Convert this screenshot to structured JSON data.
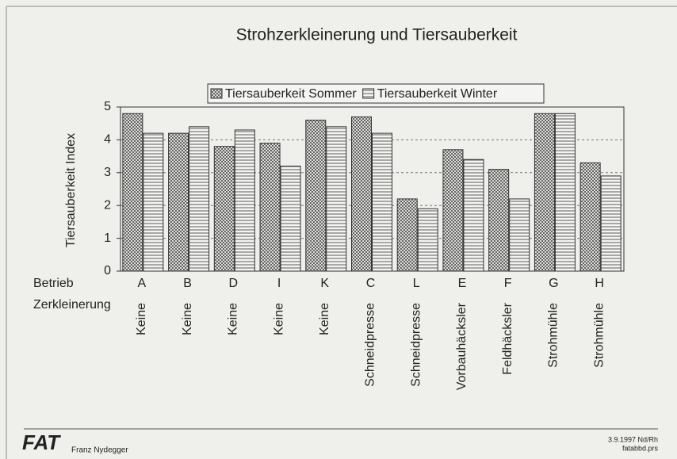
{
  "chart_data": {
    "type": "bar",
    "title": "Strohzerkleinerung und Tiersauberkeit",
    "y_label": "Tiersauberkeit Index",
    "row_labels": [
      "Betrieb",
      "Zerkleinerung"
    ],
    "categories": [
      "A",
      "B",
      "D",
      "I",
      "K",
      "C",
      "L",
      "E",
      "F",
      "G",
      "H"
    ],
    "category_details": [
      "Keine",
      "Keine",
      "Keine",
      "Keine",
      "Keine",
      "Schneidpresse",
      "Schneidpresse",
      "Vorbauhäcksler",
      "Feldhäcksler",
      "Strohmühle",
      "Strohmühle"
    ],
    "series": [
      {
        "name": "Tiersauberkeit Sommer",
        "color": "#333333",
        "hatch": "cross",
        "values": [
          4.8,
          4.2,
          3.8,
          3.9,
          4.6,
          4.7,
          2.2,
          3.7,
          3.1,
          4.8,
          3.3
        ]
      },
      {
        "name": "Tiersauberkeit Winter",
        "color": "#333333",
        "hatch": "horizontal",
        "values": [
          4.2,
          4.4,
          4.3,
          3.2,
          4.4,
          4.2,
          1.9,
          3.4,
          2.2,
          4.8,
          2.9
        ]
      }
    ],
    "ylim": [
      0,
      5
    ],
    "yticks": [
      0,
      1,
      2,
      3,
      4,
      5
    ],
    "grid": true,
    "legend": "top",
    "footer": {
      "logo": "FAT",
      "author": "Franz Nydegger",
      "date": "3.9.1997 Nd/Rh",
      "file": "fatabbd.prs"
    }
  }
}
